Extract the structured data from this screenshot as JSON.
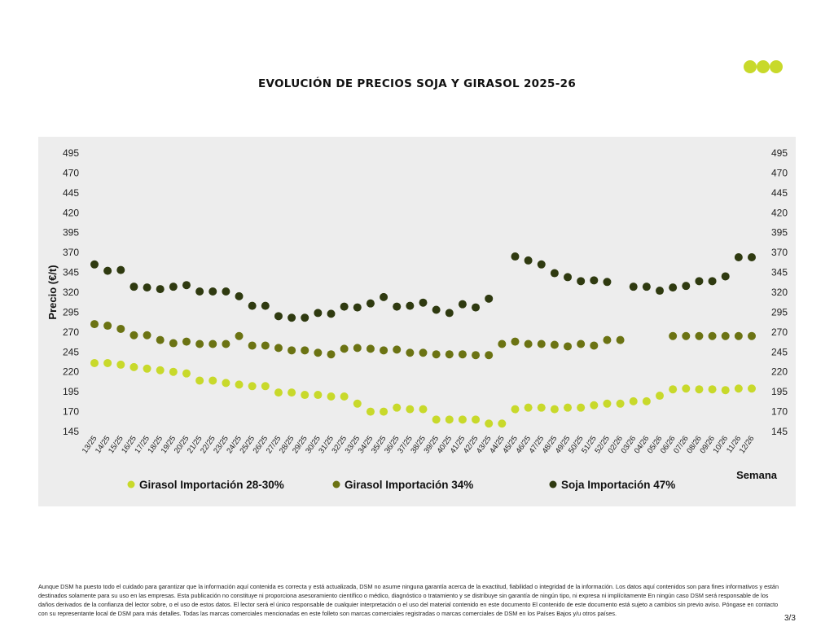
{
  "title": "EVOLUCIÓN DE PRECIOS SOJA Y GIRASOL 2025-26",
  "colors": {
    "logo": "#c8d92b",
    "panel_bg": "#ededed",
    "girasol_28_30": "#c8d92b",
    "girasol_34": "#6b7313",
    "soja_47": "#2f3a10"
  },
  "chart_data": {
    "type": "scatter",
    "title": "EVOLUCIÓN DE PRECIOS SOJA Y GIRASOL 2025-26",
    "ylabel": "Precio (€/t)",
    "xlabel": "Semana",
    "ylim": [
      145,
      495
    ],
    "yticks": [
      145,
      170,
      195,
      220,
      245,
      270,
      295,
      320,
      345,
      370,
      395,
      420,
      445,
      470,
      495
    ],
    "grid": false,
    "legend_position": "bottom",
    "categories": [
      "13/25",
      "14/25",
      "15/25",
      "16/25",
      "17/25",
      "18/25",
      "19/25",
      "20/25",
      "21/25",
      "22/25",
      "23/25",
      "24/25",
      "25/25",
      "26/25",
      "27/25",
      "28/25",
      "29/25",
      "30/25",
      "31/25",
      "32/25",
      "33/25",
      "34/25",
      "35/25",
      "36/25",
      "37/25",
      "38/25",
      "39/25",
      "40/25",
      "41/25",
      "42/25",
      "43/25",
      "44/25",
      "45/25",
      "46/25",
      "47/25",
      "48/25",
      "49/25",
      "50/25",
      "51/25",
      "52/25",
      "02/26",
      "03/26",
      "04/26",
      "05/26",
      "06/26",
      "07/26",
      "08/26",
      "09/26",
      "10/26",
      "11/26",
      "12/26"
    ],
    "series": [
      {
        "name": "Girasol Importación 28-30%",
        "color": "#c8d92b",
        "values": [
          231,
          231,
          229,
          226,
          224,
          222,
          220,
          218,
          209,
          209,
          206,
          204,
          202,
          202,
          194,
          194,
          191,
          191,
          189,
          189,
          180,
          170,
          170,
          175,
          173,
          173,
          160,
          160,
          160,
          160,
          155,
          155,
          173,
          175,
          175,
          173,
          175,
          175,
          178,
          180,
          180,
          183,
          183,
          190,
          198,
          199,
          198,
          198,
          197,
          199,
          199
        ]
      },
      {
        "name": "Girasol Importación 34%",
        "color": "#6b7313",
        "values": [
          280,
          278,
          274,
          266,
          266,
          260,
          256,
          258,
          255,
          255,
          255,
          265,
          253,
          253,
          250,
          247,
          247,
          244,
          242,
          249,
          250,
          249,
          247,
          248,
          244,
          244,
          242,
          242,
          242,
          241,
          241,
          255,
          258,
          255,
          255,
          254,
          252,
          255,
          253,
          260,
          260,
          null,
          null,
          null,
          265,
          265,
          265,
          265,
          265,
          265,
          265
        ]
      },
      {
        "name": "Soja Importación 47%",
        "color": "#2f3a10",
        "values": [
          355,
          347,
          348,
          327,
          326,
          324,
          327,
          329,
          321,
          321,
          321,
          315,
          303,
          303,
          290,
          288,
          288,
          294,
          293,
          302,
          301,
          306,
          314,
          302,
          303,
          307,
          298,
          294,
          305,
          301,
          312,
          null,
          365,
          360,
          355,
          344,
          339,
          334,
          335,
          333,
          null,
          327,
          327,
          322,
          326,
          328,
          334,
          334,
          340,
          364,
          364
        ]
      }
    ]
  },
  "legend": {
    "items": [
      {
        "label": "Girasol Importación 28-30%",
        "color": "#c8d92b"
      },
      {
        "label": "Girasol Importación 34%",
        "color": "#6b7313"
      },
      {
        "label": "Soja Importación 47%",
        "color": "#2f3a10"
      }
    ]
  },
  "disclaimer": "Aunque DSM ha puesto todo el cuidado para garantizar que la información aquí contenida es correcta y está actualizada, DSM no asume ninguna garantía acerca de la exactitud, fiabilidad o integridad de la información. Los datos aquí contenidos son para fines informativos y están destinados solamente para su uso en las empresas. Esta publicación no constituye ni proporciona asesoramiento científico o médico, diagnóstico o tratamiento y se distribuye sin garantía de ningún tipo, ni expresa ni implícitamente En ningún caso DSM será responsable de los daños derivados de la confianza del lector sobre, o el uso de estos datos. El lector será el único responsable de cualquier interpretación o el uso del material contenido en este documento El contenido de este documento está sujeto a cambios sin previo aviso. Póngase en contacto con su representante local de DSM para más detalles. Todas las marcas comerciales mencionadas en este folleto son marcas comerciales registradas o marcas comerciales de DSM en los Países Bajos y/u otros países.",
  "page_number": "3/3"
}
